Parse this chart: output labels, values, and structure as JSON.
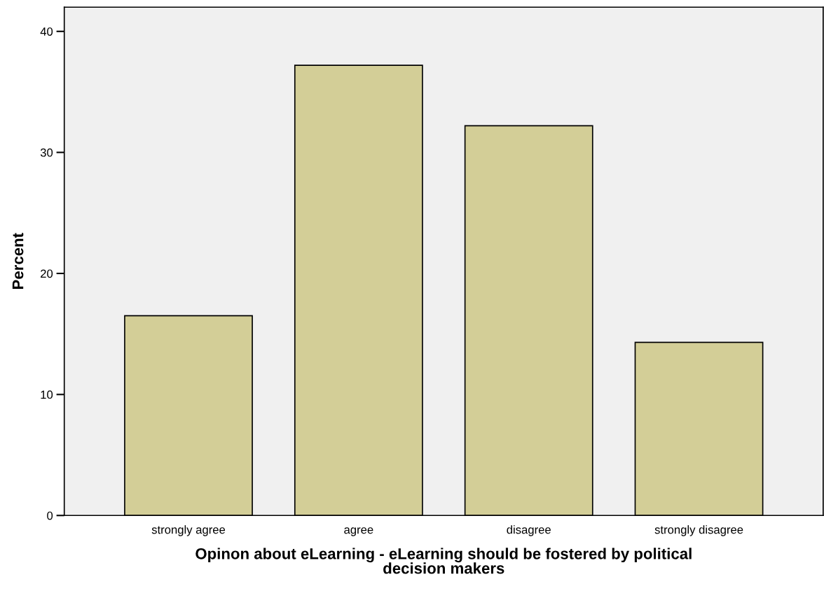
{
  "chart_data": {
    "type": "bar",
    "categories": [
      "strongly agree",
      "agree",
      "disagree",
      "strongly disagree"
    ],
    "values": [
      16.5,
      37.2,
      32.2,
      14.3
    ],
    "color": "#d3ce97",
    "xlabel": "Opinon about eLearning - eLearning should be fostered by political\ndecision makers",
    "ylabel": "Percent",
    "ylim": [
      0,
      42
    ],
    "yticks": [
      0,
      10,
      20,
      30,
      40
    ],
    "grid": false
  }
}
